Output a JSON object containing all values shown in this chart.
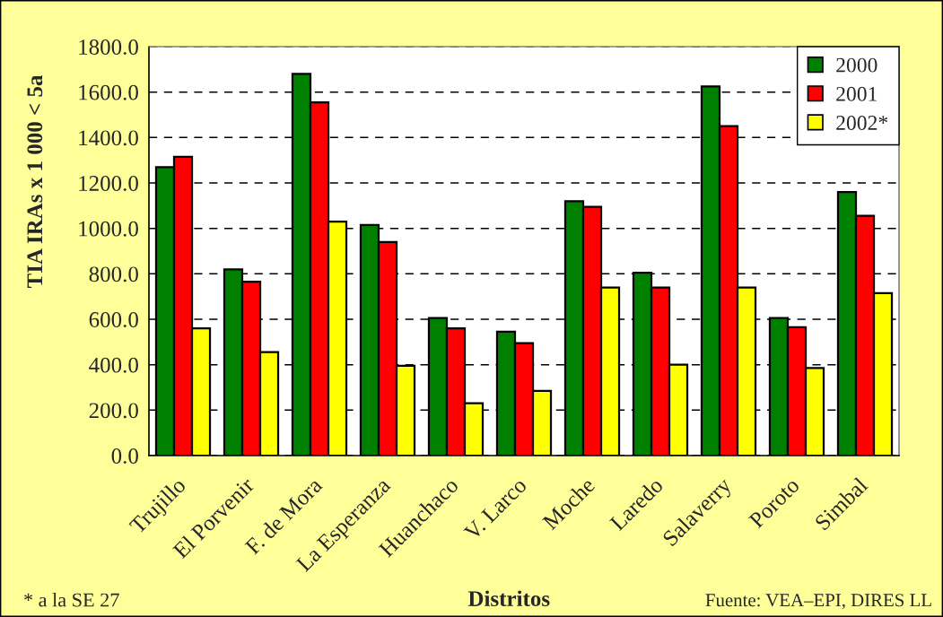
{
  "chart_data": {
    "type": "bar",
    "xlabel": "Distritos",
    "ylabel": "TIA IRAs x 1 000 < 5a",
    "categories": [
      "Trujillo",
      "El Porvenir",
      "F. de Mora",
      "La Esperanza",
      "Huanchaco",
      "V. Larco",
      "Moche",
      "Laredo",
      "Salaverry",
      "Poroto",
      "Simbal"
    ],
    "series": [
      {
        "name": "2000",
        "color": "#008000",
        "values": [
          1270,
          820,
          1680,
          1015,
          605,
          545,
          1120,
          805,
          1625,
          605,
          1160
        ]
      },
      {
        "name": "2001",
        "color": "#ff0000",
        "values": [
          1315,
          765,
          1555,
          940,
          560,
          495,
          1095,
          740,
          1450,
          565,
          1055
        ]
      },
      {
        "name": "2002*",
        "color": "#ffff00",
        "values": [
          560,
          455,
          1030,
          395,
          230,
          285,
          740,
          400,
          740,
          385,
          715
        ]
      }
    ],
    "ylim": [
      0,
      1800
    ],
    "yticks": [
      {
        "value": 0,
        "label": "0.0"
      },
      {
        "value": 200,
        "label": "200.0"
      },
      {
        "value": 400,
        "label": "400.0"
      },
      {
        "value": 600,
        "label": "600.0"
      },
      {
        "value": 800,
        "label": "800.0"
      },
      {
        "value": 1000,
        "label": "1000.0"
      },
      {
        "value": 1200,
        "label": "1200.0"
      },
      {
        "value": 1400,
        "label": "1400.0"
      },
      {
        "value": 1600,
        "label": "1600.0"
      },
      {
        "value": 1800,
        "label": "1800.0"
      }
    ],
    "grid": "y",
    "legend": "top right",
    "annotations": [
      "* a la SE 27",
      "Fuente: VEA–EPI, DIRES LL"
    ]
  }
}
